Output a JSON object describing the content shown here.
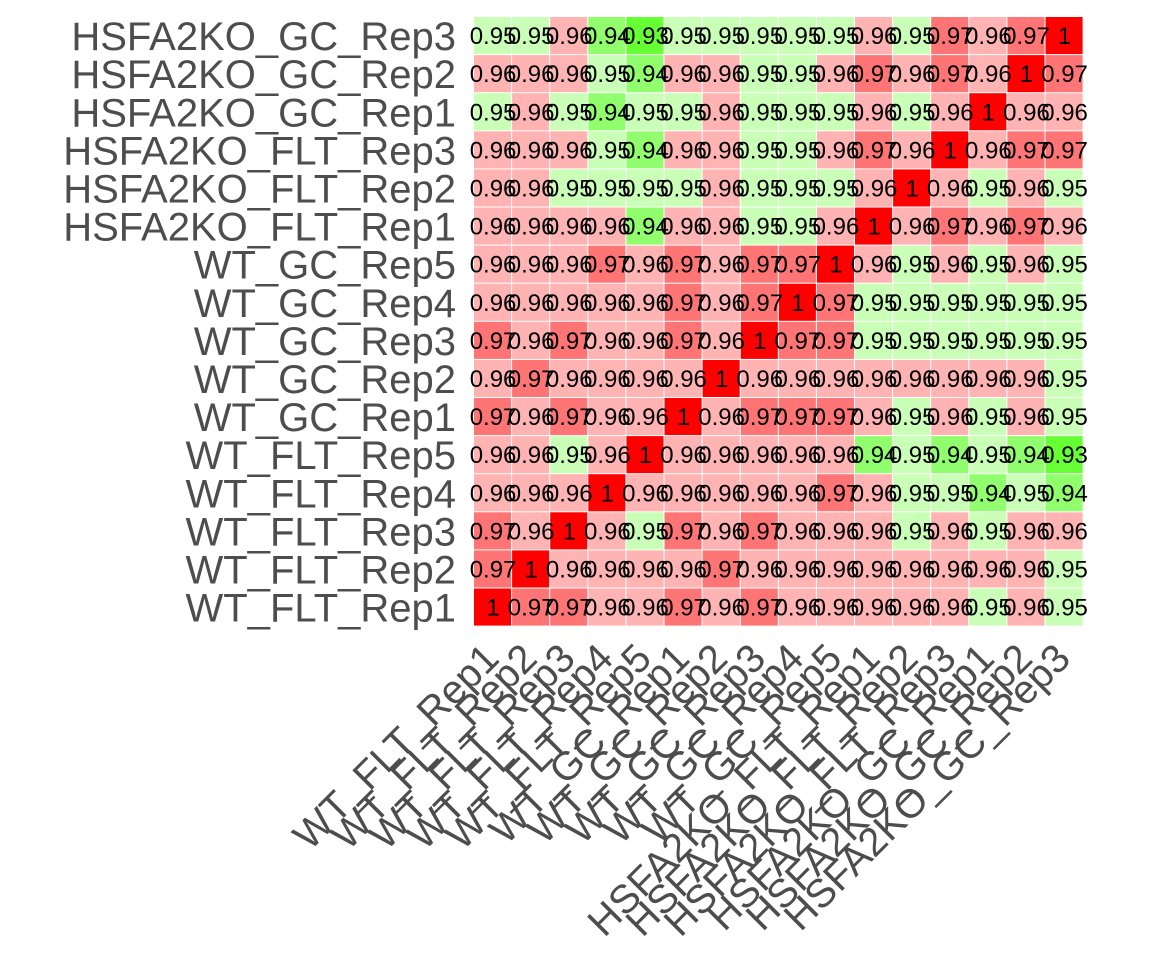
{
  "chart_data": {
    "type": "heatmap",
    "title": "",
    "xlabel": "",
    "ylabel": "",
    "samples": [
      "WT_FLT_Rep1",
      "WT_FLT_Rep2",
      "WT_FLT_Rep3",
      "WT_FLT_Rep4",
      "WT_FLT_Rep5",
      "WT_GC_Rep1",
      "WT_GC_Rep2",
      "WT_GC_Rep3",
      "WT_GC_Rep4",
      "WT_GC_Rep5",
      "HSFA2KO_FLT_Rep1",
      "HSFA2KO_FLT_Rep2",
      "HSFA2KO_FLT_Rep3",
      "HSFA2KO_GC_Rep1",
      "HSFA2KO_GC_Rep2",
      "HSFA2KO_GC_Rep3"
    ],
    "row_order_top_to_bottom": [
      "HSFA2KO_GC_Rep3",
      "HSFA2KO_GC_Rep2",
      "HSFA2KO_GC_Rep1",
      "HSFA2KO_FLT_Rep3",
      "HSFA2KO_FLT_Rep2",
      "HSFA2KO_FLT_Rep1",
      "WT_GC_Rep5",
      "WT_GC_Rep4",
      "WT_GC_Rep3",
      "WT_GC_Rep2",
      "WT_GC_Rep1",
      "WT_FLT_Rep5",
      "WT_FLT_Rep4",
      "WT_FLT_Rep3",
      "WT_FLT_Rep2",
      "WT_FLT_Rep1"
    ],
    "values": [
      [
        1,
        0.97,
        0.97,
        0.96,
        0.96,
        0.97,
        0.96,
        0.97,
        0.96,
        0.96,
        0.96,
        0.96,
        0.96,
        0.95,
        0.96,
        0.95
      ],
      [
        0.97,
        1,
        0.96,
        0.96,
        0.96,
        0.96,
        0.97,
        0.96,
        0.96,
        0.96,
        0.96,
        0.96,
        0.96,
        0.96,
        0.96,
        0.95
      ],
      [
        0.97,
        0.96,
        1,
        0.96,
        0.95,
        0.97,
        0.96,
        0.97,
        0.96,
        0.96,
        0.96,
        0.95,
        0.96,
        0.95,
        0.96,
        0.96
      ],
      [
        0.96,
        0.96,
        0.96,
        1,
        0.96,
        0.96,
        0.96,
        0.96,
        0.96,
        0.97,
        0.96,
        0.95,
        0.95,
        0.94,
        0.95,
        0.94
      ],
      [
        0.96,
        0.96,
        0.95,
        0.96,
        1,
        0.96,
        0.96,
        0.96,
        0.96,
        0.96,
        0.94,
        0.95,
        0.94,
        0.95,
        0.94,
        0.93
      ],
      [
        0.97,
        0.96,
        0.97,
        0.96,
        0.96,
        1,
        0.96,
        0.97,
        0.97,
        0.97,
        0.96,
        0.95,
        0.96,
        0.95,
        0.96,
        0.95
      ],
      [
        0.96,
        0.97,
        0.96,
        0.96,
        0.96,
        0.96,
        1,
        0.96,
        0.96,
        0.96,
        0.96,
        0.96,
        0.96,
        0.96,
        0.96,
        0.95
      ],
      [
        0.97,
        0.96,
        0.97,
        0.96,
        0.96,
        0.97,
        0.96,
        1,
        0.97,
        0.97,
        0.95,
        0.95,
        0.95,
        0.95,
        0.95,
        0.95
      ],
      [
        0.96,
        0.96,
        0.96,
        0.96,
        0.96,
        0.97,
        0.96,
        0.97,
        1,
        0.97,
        0.95,
        0.95,
        0.95,
        0.95,
        0.95,
        0.95
      ],
      [
        0.96,
        0.96,
        0.96,
        0.97,
        0.96,
        0.97,
        0.96,
        0.97,
        0.97,
        1,
        0.96,
        0.95,
        0.96,
        0.95,
        0.96,
        0.95
      ],
      [
        0.96,
        0.96,
        0.96,
        0.96,
        0.94,
        0.96,
        0.96,
        0.95,
        0.95,
        0.96,
        1,
        0.96,
        0.97,
        0.96,
        0.97,
        0.96
      ],
      [
        0.96,
        0.96,
        0.95,
        0.95,
        0.95,
        0.95,
        0.96,
        0.95,
        0.95,
        0.95,
        0.96,
        1,
        0.96,
        0.95,
        0.96,
        0.95
      ],
      [
        0.96,
        0.96,
        0.96,
        0.95,
        0.94,
        0.96,
        0.96,
        0.95,
        0.95,
        0.96,
        0.97,
        0.96,
        1,
        0.96,
        0.97,
        0.97
      ],
      [
        0.95,
        0.96,
        0.95,
        0.94,
        0.95,
        0.95,
        0.96,
        0.95,
        0.95,
        0.95,
        0.96,
        0.95,
        0.96,
        1,
        0.96,
        0.96
      ],
      [
        0.96,
        0.96,
        0.96,
        0.95,
        0.94,
        0.96,
        0.96,
        0.95,
        0.95,
        0.96,
        0.97,
        0.96,
        0.97,
        0.96,
        1,
        0.97
      ],
      [
        0.95,
        0.95,
        0.96,
        0.94,
        0.93,
        0.95,
        0.95,
        0.95,
        0.95,
        0.95,
        0.96,
        0.95,
        0.97,
        0.96,
        0.97,
        1
      ]
    ],
    "color_scale": {
      "low_color": "#66ff33",
      "mid_color": "#ffffff",
      "high_color": "#ff0000",
      "low_value": 0.93,
      "mid_value": 0.955,
      "high_value": 1
    },
    "legend": "none",
    "grid": false
  }
}
